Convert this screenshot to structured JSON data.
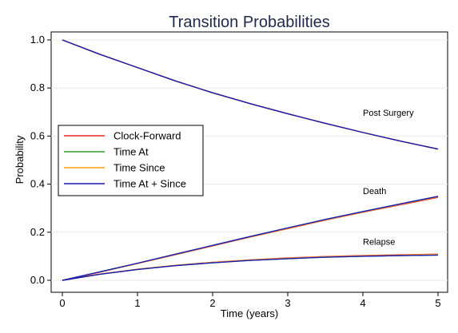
{
  "chart_data": {
    "type": "line",
    "title": "Transition Probabilities",
    "xlabel": "Time (years)",
    "ylabel": "Probability",
    "xlim": [
      0,
      5
    ],
    "ylim": [
      0,
      1
    ],
    "xticks": [
      "0",
      "1",
      "2",
      "3",
      "4",
      "5"
    ],
    "yticks": [
      "0.0",
      "0.2",
      "0.4",
      "0.6",
      "0.8",
      "1.0"
    ],
    "grid": "horizontal",
    "legend_position": "left",
    "colors": {
      "Clock-Forward": "#e8281e",
      "Time At": "#2ca02c",
      "Time Since": "#ff9a1e",
      "Time At + Since": "#1a1ab4"
    },
    "series": [
      {
        "name": "Clock-Forward",
        "curves": [
          {
            "state": "Post Surgery",
            "x": [
              0,
              0.5,
              1,
              1.5,
              2,
              2.5,
              3,
              3.5,
              4,
              4.5,
              5
            ],
            "y": [
              1.0,
              0.94,
              0.885,
              0.83,
              0.78,
              0.735,
              0.693,
              0.653,
              0.615,
              0.579,
              0.546
            ]
          },
          {
            "state": "Death",
            "x": [
              0,
              0.5,
              1,
              1.5,
              2,
              2.5,
              3,
              3.5,
              4,
              4.5,
              5
            ],
            "y": [
              0.0,
              0.034,
              0.07,
              0.106,
              0.143,
              0.18,
              0.215,
              0.25,
              0.283,
              0.314,
              0.345
            ]
          },
          {
            "state": "Relapse",
            "x": [
              0,
              0.5,
              1,
              1.5,
              2,
              2.5,
              3,
              3.5,
              4,
              4.5,
              5
            ],
            "y": [
              0.0,
              0.026,
              0.046,
              0.062,
              0.075,
              0.085,
              0.093,
              0.099,
              0.103,
              0.106,
              0.109
            ]
          }
        ]
      },
      {
        "name": "Time At",
        "curves": [
          {
            "state": "Post Surgery",
            "x": [
              0,
              0.5,
              1,
              1.5,
              2,
              2.5,
              3,
              3.5,
              4,
              4.5,
              5
            ],
            "y": [
              1.0,
              0.94,
              0.885,
              0.83,
              0.78,
              0.735,
              0.693,
              0.653,
              0.615,
              0.579,
              0.546
            ]
          },
          {
            "state": "Death",
            "x": [
              0,
              0.5,
              1,
              1.5,
              2,
              2.5,
              3,
              3.5,
              4,
              4.5,
              5
            ],
            "y": [
              0.0,
              0.035,
              0.071,
              0.108,
              0.145,
              0.182,
              0.218,
              0.253,
              0.286,
              0.318,
              0.349
            ]
          },
          {
            "state": "Relapse",
            "x": [
              0,
              0.5,
              1,
              1.5,
              2,
              2.5,
              3,
              3.5,
              4,
              4.5,
              5
            ],
            "y": [
              0.0,
              0.025,
              0.045,
              0.061,
              0.073,
              0.083,
              0.09,
              0.096,
              0.1,
              0.103,
              0.105
            ]
          }
        ]
      },
      {
        "name": "Time Since",
        "curves": [
          {
            "state": "Post Surgery",
            "x": [
              0,
              0.5,
              1,
              1.5,
              2,
              2.5,
              3,
              3.5,
              4,
              4.5,
              5
            ],
            "y": [
              1.0,
              0.94,
              0.885,
              0.83,
              0.78,
              0.735,
              0.693,
              0.653,
              0.615,
              0.579,
              0.546
            ]
          },
          {
            "state": "Death",
            "x": [
              0,
              0.5,
              1,
              1.5,
              2,
              2.5,
              3,
              3.5,
              4,
              4.5,
              5
            ],
            "y": [
              0.0,
              0.034,
              0.07,
              0.107,
              0.144,
              0.181,
              0.216,
              0.251,
              0.284,
              0.316,
              0.347
            ]
          },
          {
            "state": "Relapse",
            "x": [
              0,
              0.5,
              1,
              1.5,
              2,
              2.5,
              3,
              3.5,
              4,
              4.5,
              5
            ],
            "y": [
              0.0,
              0.026,
              0.046,
              0.062,
              0.075,
              0.085,
              0.092,
              0.098,
              0.102,
              0.105,
              0.108
            ]
          }
        ]
      },
      {
        "name": "Time At + Since",
        "curves": [
          {
            "state": "Post Surgery",
            "x": [
              0,
              0.5,
              1,
              1.5,
              2,
              2.5,
              3,
              3.5,
              4,
              4.5,
              5
            ],
            "y": [
              1.0,
              0.94,
              0.885,
              0.83,
              0.78,
              0.735,
              0.693,
              0.653,
              0.615,
              0.579,
              0.546
            ]
          },
          {
            "state": "Death",
            "x": [
              0,
              0.5,
              1,
              1.5,
              2,
              2.5,
              3,
              3.5,
              4,
              4.5,
              5
            ],
            "y": [
              0.0,
              0.035,
              0.071,
              0.108,
              0.145,
              0.182,
              0.218,
              0.253,
              0.286,
              0.318,
              0.349
            ]
          },
          {
            "state": "Relapse",
            "x": [
              0,
              0.5,
              1,
              1.5,
              2,
              2.5,
              3,
              3.5,
              4,
              4.5,
              5
            ],
            "y": [
              0.0,
              0.025,
              0.045,
              0.061,
              0.073,
              0.083,
              0.09,
              0.096,
              0.1,
              0.103,
              0.105
            ]
          }
        ]
      }
    ],
    "annotations": [
      {
        "text": "Post Surgery",
        "x": 4.0,
        "y": 0.685
      },
      {
        "text": "Death",
        "x": 4.0,
        "y": 0.358
      },
      {
        "text": "Relapse",
        "x": 4.0,
        "y": 0.148
      }
    ]
  }
}
